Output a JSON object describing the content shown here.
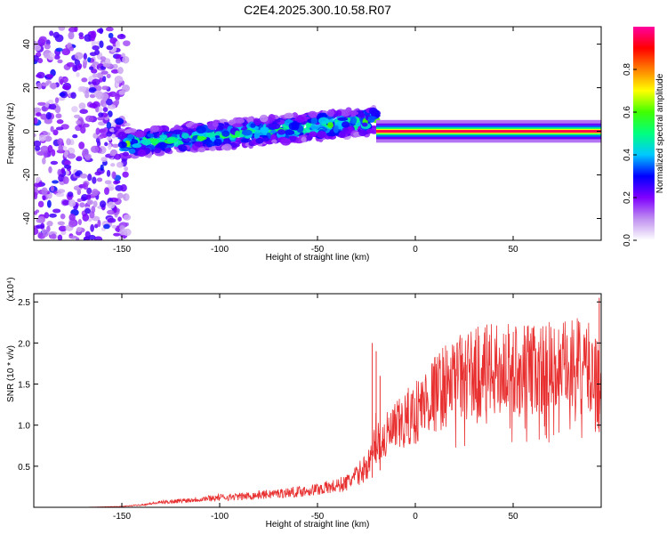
{
  "figure_title": "C2E4.2025.300.10.58.R07",
  "chart_data": [
    {
      "type": "heatmap",
      "title": "C2E4.2025.300.10.58.R07",
      "xlabel": "Height of straight line (km)",
      "ylabel": "Frequency (Hz)",
      "xlim": [
        -195,
        95
      ],
      "ylim": [
        -50,
        48
      ],
      "x_ticks": [
        -150,
        -100,
        -50,
        0,
        50
      ],
      "y_ticks": [
        -40,
        -20,
        0,
        20,
        40
      ],
      "x_tick_labels": [
        "-150",
        "-100",
        "-50",
        "0",
        "50"
      ],
      "y_tick_labels": [
        "-40",
        "-20",
        "0",
        "20",
        "40"
      ],
      "colorbar": {
        "label": "Normalized spectral amplitude",
        "range": [
          0,
          1
        ],
        "ticks": [
          0.0,
          0.2,
          0.4,
          0.6,
          0.8
        ],
        "tick_labels": [
          "0.0",
          "0.2",
          "0.4",
          "0.6",
          "0.8"
        ],
        "colors": [
          "#ffffff",
          "#c090f0",
          "#8000ff",
          "#0000ff",
          "#00c8ff",
          "#00ff80",
          "#40ff00",
          "#ffff00",
          "#ff8000",
          "#ff0000",
          "#ff00a0"
        ]
      },
      "regions": [
        {
          "name": "diffuse noise",
          "x_range": [
            -195,
            -147
          ],
          "freq_range": [
            -50,
            48
          ],
          "level": 0.15
        },
        {
          "name": "strong band",
          "x_range": [
            -150,
            -20
          ],
          "center_freq_start": -6,
          "center_freq_end": 5,
          "half_width_hz": 6,
          "level": 0.35
        },
        {
          "name": "narrow line",
          "x_range": [
            -20,
            95
          ],
          "center_freq": 0,
          "half_width_hz": 2,
          "level": 0.95
        }
      ]
    },
    {
      "type": "line",
      "xlabel": "Height of straight line (km)",
      "ylabel": "SNR (10 * v/v)",
      "y_scale_label": "(x10⁴)",
      "xlim": [
        -195,
        95
      ],
      "ylim": [
        0,
        2.6
      ],
      "x_ticks": [
        -150,
        -100,
        -50,
        0,
        50
      ],
      "y_ticks": [
        0.5,
        1.0,
        1.5,
        2.0,
        2.5
      ],
      "x_tick_labels": [
        "-150",
        "-100",
        "-50",
        "0",
        "50"
      ],
      "y_tick_labels": [
        "0.5",
        "1.0",
        "1.5",
        "2.0",
        "2.5"
      ],
      "color": "#e83030",
      "series": [
        {
          "name": "SNR",
          "x": [
            -195,
            -170,
            -150,
            -140,
            -130,
            -120,
            -110,
            -100,
            -90,
            -80,
            -70,
            -60,
            -50,
            -40,
            -35,
            -30,
            -25,
            -22,
            -20,
            -18,
            -15,
            -10,
            -5,
            0,
            5,
            10,
            15,
            20,
            25,
            30,
            40,
            50,
            60,
            70,
            75,
            80,
            85,
            90,
            93,
            95
          ],
          "y": [
            0.0,
            0.0,
            0.01,
            0.03,
            0.06,
            0.08,
            0.1,
            0.12,
            0.13,
            0.15,
            0.17,
            0.19,
            0.22,
            0.26,
            0.3,
            0.38,
            0.5,
            0.6,
            0.9,
            0.75,
            0.85,
            0.95,
            1.05,
            1.15,
            1.28,
            1.38,
            1.48,
            1.52,
            1.6,
            1.63,
            1.66,
            1.67,
            1.68,
            1.68,
            1.68,
            1.7,
            1.72,
            1.65,
            1.55,
            1.5
          ]
        }
      ],
      "spikes": [
        {
          "x": -22,
          "y": 2.0
        },
        {
          "x": -20,
          "y": 1.9
        },
        {
          "x": -18,
          "y": 1.6
        },
        {
          "x": 92,
          "y": 2.05
        },
        {
          "x": 94,
          "y": 2.55
        }
      ]
    }
  ]
}
